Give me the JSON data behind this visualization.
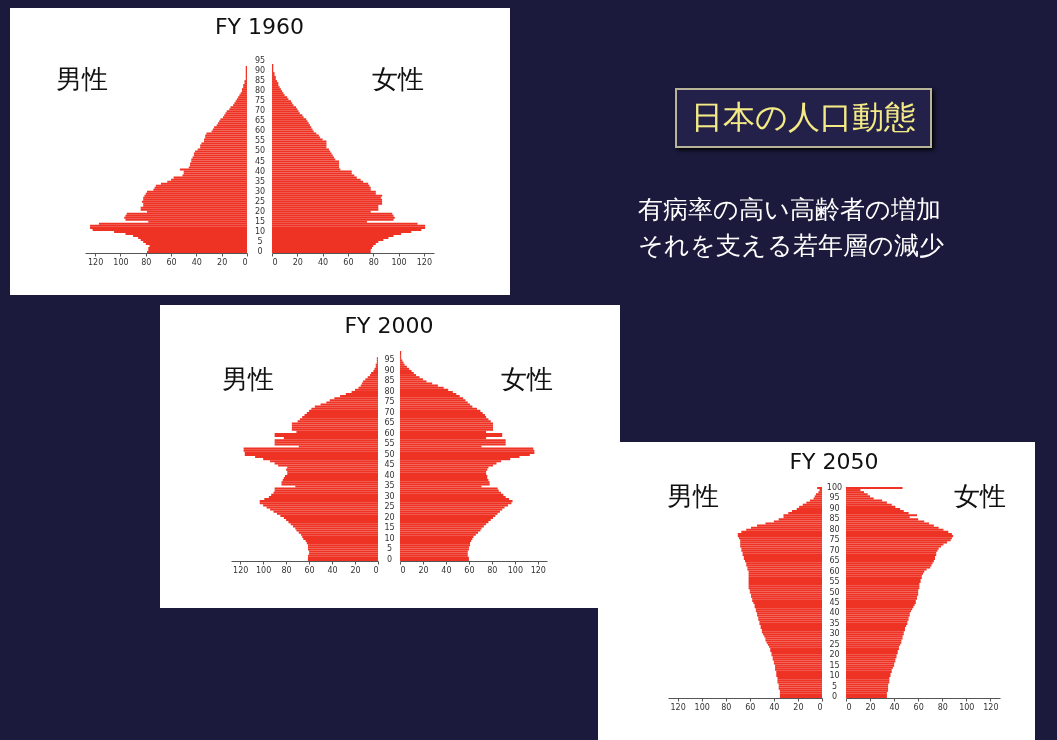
{
  "chart_data": [
    {
      "type": "bar",
      "orientation": "horizontal",
      "title": "FY 1960",
      "categories": [
        null,
        null,
        null,
        null,
        "95",
        null,
        null,
        null,
        null,
        "90",
        null,
        null,
        null,
        null,
        "85",
        null,
        null,
        null,
        null,
        "80",
        null,
        null,
        null,
        null,
        "75",
        null,
        null,
        null,
        null,
        "70",
        null,
        null,
        null,
        null,
        "65",
        null,
        null,
        null,
        null,
        "60",
        null,
        null,
        null,
        null,
        "55",
        null,
        null,
        null,
        null,
        "50",
        null,
        null,
        null,
        null,
        "45",
        null,
        null,
        null,
        null,
        "40",
        null,
        null,
        null,
        null,
        "35",
        null,
        null,
        null,
        null,
        "30",
        null,
        null,
        null,
        null,
        "25",
        null,
        null,
        null,
        null,
        "20",
        null,
        null,
        null,
        null,
        "15",
        null,
        null,
        null,
        null,
        "10",
        null,
        null,
        null,
        null,
        "5",
        null,
        null,
        null,
        null,
        "0"
      ],
      "series": [
        {
          "name": "男性",
          "color": "#ee3224",
          "values": [
            0,
            0,
            0,
            0,
            0,
            0,
            0,
            1,
            1,
            1,
            1,
            1,
            1,
            1,
            2,
            2,
            3,
            3,
            4,
            4,
            5,
            6,
            7,
            8,
            9,
            10,
            11,
            13,
            14,
            16,
            17,
            18,
            19,
            21,
            22,
            23,
            24,
            26,
            27,
            28,
            32,
            33,
            33,
            34,
            34,
            36,
            37,
            37,
            39,
            41,
            42,
            42,
            43,
            44,
            44,
            45,
            45,
            46,
            53,
            50,
            50,
            51,
            58,
            60,
            63,
            68,
            72,
            73,
            74,
            79,
            80,
            81,
            82,
            82,
            83,
            82,
            82,
            84,
            84,
            79,
            95,
            96,
            97,
            96,
            78,
            117,
            124,
            124,
            122,
            105,
            96,
            90,
            86,
            84,
            82,
            80,
            77,
            78,
            78,
            79
          ]
        }
      ],
      "xlim": [
        128,
        0
      ],
      "xticks": [
        0,
        20,
        40,
        60,
        80,
        100,
        120
      ]
    },
    {
      "type": "bar",
      "orientation": "horizontal",
      "categories": [
        null,
        null,
        null,
        null,
        "95",
        null,
        null,
        null,
        null,
        "90",
        null,
        null,
        null,
        null,
        "85",
        null,
        null,
        null,
        null,
        "80",
        null,
        null,
        null,
        null,
        "75",
        null,
        null,
        null,
        null,
        "70",
        null,
        null,
        null,
        null,
        "65",
        null,
        null,
        null,
        null,
        "60",
        null,
        null,
        null,
        null,
        "55",
        null,
        null,
        null,
        null,
        "50",
        null,
        null,
        null,
        null,
        "45",
        null,
        null,
        null,
        null,
        "40",
        null,
        null,
        null,
        null,
        "35",
        null,
        null,
        null,
        null,
        "30",
        null,
        null,
        null,
        null,
        "25",
        null,
        null,
        null,
        null,
        "20",
        null,
        null,
        null,
        null,
        "15",
        null,
        null,
        null,
        null,
        "10",
        null,
        null,
        null,
        null,
        "5",
        null,
        null,
        null,
        null,
        "0"
      ],
      "series": [
        {
          "name": "女性",
          "color": "#ee3224",
          "values": [
            0,
            0,
            0,
            0,
            0,
            0,
            1,
            1,
            1,
            1,
            2,
            2,
            3,
            3,
            4,
            5,
            5,
            6,
            7,
            8,
            9,
            10,
            12,
            13,
            15,
            16,
            17,
            19,
            20,
            21,
            22,
            24,
            25,
            27,
            28,
            29,
            30,
            31,
            32,
            33,
            35,
            37,
            38,
            40,
            43,
            43,
            43,
            43,
            45,
            46,
            47,
            48,
            49,
            50,
            53,
            53,
            53,
            53,
            54,
            63,
            63,
            65,
            67,
            70,
            72,
            76,
            77,
            78,
            78,
            82,
            82,
            87,
            86,
            87,
            87,
            87,
            84,
            84,
            84,
            78,
            95,
            96,
            97,
            96,
            75,
            115,
            121,
            121,
            118,
            110,
            102,
            96,
            92,
            88,
            84,
            82,
            80,
            79,
            78,
            78
          ]
        }
      ],
      "xlim": [
        0,
        128
      ],
      "xticks": [
        0,
        20,
        40,
        60,
        80,
        100,
        120
      ],
      "tick_labels": "x"
    },
    {
      "type": "bar",
      "orientation": "horizontal",
      "title": "FY 2000",
      "categories": [
        null,
        null,
        null,
        null,
        "95",
        null,
        null,
        null,
        null,
        "90",
        null,
        null,
        null,
        null,
        "85",
        null,
        null,
        null,
        null,
        "80",
        null,
        null,
        null,
        null,
        "75",
        null,
        null,
        null,
        null,
        "70",
        null,
        null,
        null,
        null,
        "65",
        null,
        null,
        null,
        null,
        "60",
        null,
        null,
        null,
        null,
        "55",
        null,
        null,
        null,
        null,
        "50",
        null,
        null,
        null,
        null,
        "45",
        null,
        null,
        null,
        null,
        "40",
        null,
        null,
        null,
        null,
        "35",
        null,
        null,
        null,
        null,
        "30",
        null,
        null,
        null,
        null,
        "25",
        null,
        null,
        null,
        null,
        "20",
        null,
        null,
        null,
        null,
        "15",
        null,
        null,
        null,
        null,
        "10",
        null,
        null,
        null,
        null,
        "5",
        null,
        null,
        null,
        null,
        "0"
      ],
      "series": [
        {
          "name": "男性",
          "color": "#ee3224",
          "values": [
            0,
            0,
            0,
            1,
            1,
            1,
            2,
            2,
            3,
            4,
            6,
            7,
            9,
            11,
            13,
            14,
            15,
            17,
            20,
            23,
            28,
            33,
            38,
            42,
            45,
            50,
            55,
            58,
            60,
            62,
            64,
            66,
            68,
            70,
            75,
            75,
            75,
            75,
            71,
            90,
            90,
            82,
            90,
            90,
            90,
            69,
            117,
            117,
            116,
            116,
            107,
            100,
            94,
            90,
            87,
            79,
            80,
            79,
            79,
            81,
            82,
            83,
            84,
            84,
            72,
            90,
            90,
            91,
            93,
            95,
            99,
            103,
            103,
            100,
            97,
            94,
            91,
            88,
            85,
            82,
            80,
            78,
            76,
            74,
            72,
            71,
            69,
            67,
            66,
            65,
            63,
            62,
            61,
            61,
            61,
            60,
            60,
            61,
            61,
            61
          ]
        }
      ],
      "xlim": [
        128,
        0
      ],
      "xticks": [
        0,
        20,
        40,
        60,
        80,
        100,
        120
      ]
    },
    {
      "type": "bar",
      "orientation": "horizontal",
      "categories": [
        null,
        null,
        null,
        null,
        "95",
        null,
        null,
        null,
        null,
        "90",
        null,
        null,
        null,
        null,
        "85",
        null,
        null,
        null,
        null,
        "80",
        null,
        null,
        null,
        null,
        "75",
        null,
        null,
        null,
        null,
        "70",
        null,
        null,
        null,
        null,
        "65",
        null,
        null,
        null,
        null,
        "60",
        null,
        null,
        null,
        null,
        "55",
        null,
        null,
        null,
        null,
        "50",
        null,
        null,
        null,
        null,
        "45",
        null,
        null,
        null,
        null,
        "40",
        null,
        null,
        null,
        null,
        "35",
        null,
        null,
        null,
        null,
        "30",
        null,
        null,
        null,
        null,
        "25",
        null,
        null,
        null,
        null,
        "20",
        null,
        null,
        null,
        null,
        "15",
        null,
        null,
        null,
        null,
        "10",
        null,
        null,
        null,
        null,
        "5",
        null,
        null,
        null,
        null,
        "0"
      ],
      "series": [
        {
          "name": "女性",
          "color": "#ee3224",
          "values": [
            1,
            1,
            1,
            1,
            2,
            3,
            4,
            6,
            8,
            10,
            12,
            14,
            17,
            20,
            23,
            28,
            33,
            38,
            42,
            46,
            49,
            52,
            55,
            57,
            59,
            61,
            63,
            67,
            70,
            72,
            74,
            75,
            77,
            79,
            81,
            81,
            81,
            81,
            75,
            89,
            89,
            75,
            92,
            92,
            92,
            71,
            116,
            117,
            117,
            113,
            104,
            96,
            88,
            84,
            81,
            77,
            76,
            75,
            75,
            76,
            76,
            77,
            78,
            78,
            71,
            85,
            86,
            88,
            90,
            92,
            95,
            98,
            97,
            94,
            91,
            89,
            87,
            85,
            83,
            81,
            79,
            77,
            75,
            73,
            71,
            70,
            68,
            66,
            64,
            63,
            62,
            61,
            61,
            60,
            60,
            59,
            59,
            59,
            60,
            60
          ]
        }
      ],
      "xlim": [
        0,
        128
      ],
      "xticks": [
        0,
        20,
        40,
        60,
        80,
        100,
        120
      ],
      "tick_labels": "x"
    },
    {
      "type": "bar",
      "orientation": "horizontal",
      "title": "FY 2050",
      "categories": [
        "100",
        null,
        null,
        null,
        null,
        "95",
        null,
        null,
        null,
        null,
        "90",
        null,
        null,
        null,
        null,
        "85",
        null,
        null,
        null,
        null,
        "80",
        null,
        null,
        null,
        null,
        "75",
        null,
        null,
        null,
        null,
        "70",
        null,
        null,
        null,
        null,
        "65",
        null,
        null,
        null,
        null,
        "60",
        null,
        null,
        null,
        null,
        "55",
        null,
        null,
        null,
        null,
        "50",
        null,
        null,
        null,
        null,
        "45",
        null,
        null,
        null,
        null,
        "40",
        null,
        null,
        null,
        null,
        "35",
        null,
        null,
        null,
        null,
        "30",
        null,
        null,
        null,
        null,
        "25",
        null,
        null,
        null,
        null,
        "20",
        null,
        null,
        null,
        null,
        "15",
        null,
        null,
        null,
        null,
        "10",
        null,
        null,
        null,
        null,
        "5",
        null,
        null,
        null,
        null,
        "0"
      ],
      "series": [
        {
          "name": "男性",
          "color": "#ee3224",
          "values": [
            4,
            2,
            3,
            5,
            6,
            7,
            10,
            13,
            16,
            19,
            21,
            25,
            28,
            32,
            32,
            36,
            40,
            47,
            54,
            59,
            63,
            67,
            70,
            70,
            69,
            68,
            68,
            68,
            68,
            67,
            67,
            66,
            66,
            65,
            65,
            64,
            63,
            63,
            62,
            62,
            61,
            61,
            61,
            61,
            61,
            61,
            61,
            61,
            61,
            60,
            60,
            59,
            59,
            58,
            58,
            57,
            56,
            56,
            55,
            55,
            54,
            54,
            53,
            53,
            52,
            52,
            51,
            51,
            50,
            50,
            49,
            48,
            47,
            47,
            46,
            45,
            44,
            43,
            43,
            42,
            42,
            41,
            41,
            40,
            40,
            39,
            39,
            39,
            38,
            38,
            38,
            37,
            37,
            37,
            36,
            36,
            36,
            35,
            35,
            35,
            35
          ]
        }
      ],
      "xlim": [
        128,
        0
      ],
      "xticks": [
        0,
        20,
        40,
        60,
        80,
        100,
        120
      ]
    },
    {
      "type": "bar",
      "orientation": "horizontal",
      "categories": [
        "100",
        null,
        null,
        null,
        null,
        "95",
        null,
        null,
        null,
        null,
        "90",
        null,
        null,
        null,
        null,
        "85",
        null,
        null,
        null,
        null,
        "80",
        null,
        null,
        null,
        null,
        "75",
        null,
        null,
        null,
        null,
        "70",
        null,
        null,
        null,
        null,
        "65",
        null,
        null,
        null,
        null,
        "60",
        null,
        null,
        null,
        null,
        "55",
        null,
        null,
        null,
        null,
        "50",
        null,
        null,
        null,
        null,
        "45",
        null,
        null,
        null,
        null,
        "40",
        null,
        null,
        null,
        null,
        "35",
        null,
        null,
        null,
        null,
        "30",
        null,
        null,
        null,
        null,
        "25",
        null,
        null,
        null,
        null,
        "20",
        null,
        null,
        null,
        null,
        "15",
        null,
        null,
        null,
        null,
        "10",
        null,
        null,
        null,
        null,
        "5",
        null,
        null,
        null,
        null,
        "0"
      ],
      "series": [
        {
          "name": "女性",
          "color": "#ee3224",
          "values": [
            47,
            12,
            15,
            18,
            20,
            23,
            30,
            34,
            38,
            41,
            45,
            48,
            52,
            59,
            53,
            60,
            65,
            69,
            73,
            77,
            81,
            85,
            88,
            89,
            88,
            87,
            84,
            81,
            79,
            77,
            76,
            75,
            75,
            74,
            74,
            73,
            72,
            71,
            70,
            67,
            65,
            64,
            63,
            63,
            62,
            62,
            61,
            61,
            61,
            60,
            60,
            60,
            59,
            59,
            58,
            58,
            57,
            56,
            55,
            54,
            53,
            53,
            52,
            52,
            51,
            51,
            50,
            49,
            49,
            48,
            48,
            47,
            47,
            46,
            46,
            45,
            44,
            44,
            43,
            43,
            42,
            42,
            41,
            41,
            40,
            40,
            39,
            38,
            38,
            37,
            37,
            36,
            36,
            36,
            35,
            35,
            35,
            35,
            34,
            34,
            34
          ]
        }
      ],
      "xlim": [
        0,
        128
      ],
      "xticks": [
        0,
        20,
        40,
        60,
        80,
        100,
        120
      ],
      "tick_labels": "x"
    },
    {
      "type": "other",
      "title": "日本の人口動態",
      "annotations": [
        "有病率の高い高齢者の増加",
        "それを支える若年層の減少"
      ]
    }
  ]
}
